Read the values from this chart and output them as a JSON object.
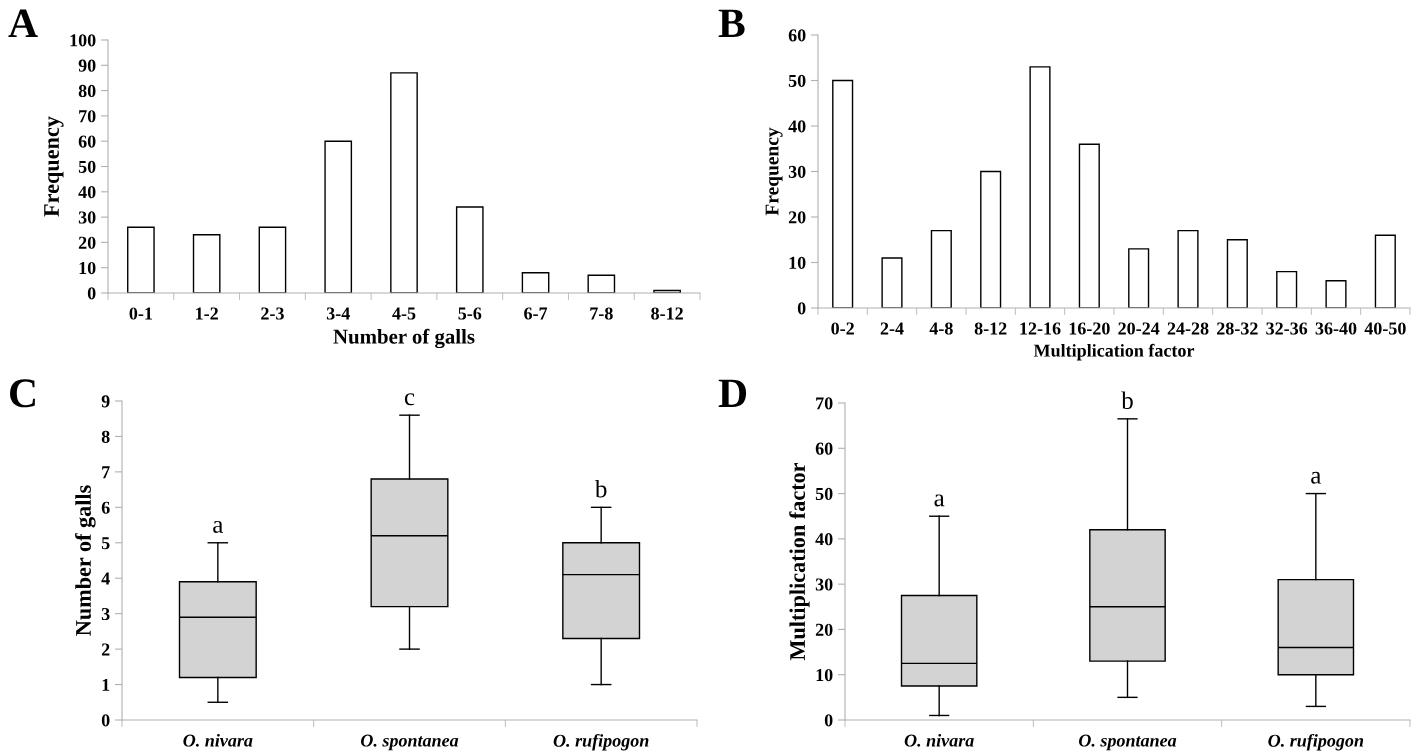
{
  "chart_data": [
    {
      "type": "bar",
      "title": "A",
      "xlabel": "Number of galls",
      "ylabel": "Frequency",
      "categories": [
        "0-1",
        "1-2",
        "2-3",
        "3-4",
        "4-5",
        "5-6",
        "6-7",
        "7-8",
        "8-12"
      ],
      "series": [
        {
          "color": "#ffffff",
          "values": [
            26,
            23,
            26,
            60,
            87,
            34,
            8,
            7,
            1
          ]
        }
      ],
      "ylim": [
        0,
        100
      ],
      "yticks": [
        0,
        10,
        20,
        30,
        40,
        50,
        60,
        70,
        80,
        90,
        100
      ],
      "grid": false,
      "legend": false
    },
    {
      "type": "bar",
      "title": "B",
      "xlabel": "Multiplication factor",
      "ylabel": "Frequency",
      "categories": [
        "0-2",
        "2-4",
        "4-8",
        "8-12",
        "12-16",
        "16-20",
        "20-24",
        "24-28",
        "28-32",
        "32-36",
        "36-40",
        "40-50"
      ],
      "series": [
        {
          "color": "#ffffff",
          "values": [
            50,
            11,
            17,
            30,
            53,
            36,
            13,
            17,
            15,
            8,
            6,
            16
          ]
        }
      ],
      "ylim": [
        0,
        60
      ],
      "yticks": [
        0,
        10,
        20,
        30,
        40,
        50,
        60
      ],
      "grid": false,
      "legend": false
    },
    {
      "type": "box",
      "title": "C",
      "ylabel": "Number of galls",
      "categories": [
        "O. nivara",
        "O. spontanea",
        "O. rufipogon"
      ],
      "series": [
        {
          "color": "#d3d3d3",
          "boxes": [
            {
              "low": 0.5,
              "q1": 1.2,
              "median": 2.9,
              "q3": 3.9,
              "high": 5
            },
            {
              "low": 2,
              "q1": 3.2,
              "median": 5.2,
              "q3": 6.8,
              "high": 8.6
            },
            {
              "low": 1,
              "q1": 2.3,
              "median": 4.1,
              "q3": 5,
              "high": 6
            }
          ]
        }
      ],
      "ylim": [
        0,
        9
      ],
      "yticks": [
        0,
        1,
        2,
        3,
        4,
        5,
        6,
        7,
        8,
        9
      ],
      "grid": false,
      "legend": false,
      "annotations": [
        "a",
        "c",
        "b"
      ]
    },
    {
      "type": "box",
      "title": "D",
      "ylabel": "Multiplication factor",
      "categories": [
        "O. nivara",
        "O. spontanea",
        "O. rufipogon"
      ],
      "series": [
        {
          "color": "#d3d3d3",
          "boxes": [
            {
              "low": 1,
              "q1": 7.5,
              "median": 12.5,
              "q3": 27.5,
              "high": 45
            },
            {
              "low": 5,
              "q1": 13,
              "median": 25,
              "q3": 42,
              "high": 66.5
            },
            {
              "low": 3,
              "q1": 10,
              "median": 16,
              "q3": 31,
              "high": 50
            }
          ]
        }
      ],
      "ylim": [
        0,
        70
      ],
      "yticks": [
        0,
        10,
        20,
        30,
        40,
        50,
        60,
        70
      ],
      "grid": false,
      "legend": false,
      "annotations": [
        "a",
        "b",
        "a"
      ]
    }
  ]
}
